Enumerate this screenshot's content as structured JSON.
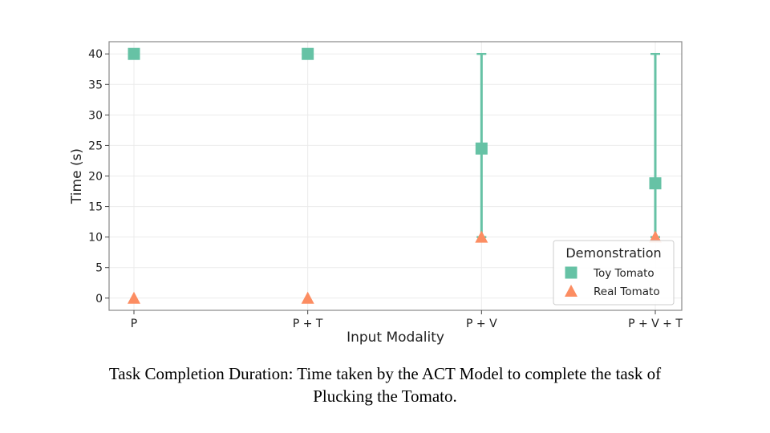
{
  "chart_data": {
    "type": "scatter",
    "categories": [
      "P",
      "P + T",
      "P + V",
      "P + V + T"
    ],
    "xlabel": "Input Modality",
    "ylabel": "Time (s)",
    "ylim": [
      -2,
      42
    ],
    "yticks": [
      0,
      5,
      10,
      15,
      20,
      25,
      30,
      35,
      40
    ],
    "grid": true,
    "legend": {
      "title": "Demonstration",
      "placement": "lower-right"
    },
    "series": [
      {
        "name": "Toy Tomato",
        "marker": "square",
        "color": "#66c2a5",
        "values": [
          40,
          40,
          24.5,
          18.8
        ],
        "error_low": [
          40,
          40,
          10,
          10
        ],
        "error_high": [
          40,
          40,
          40,
          40
        ]
      },
      {
        "name": "Real Tomato",
        "marker": "triangle",
        "color": "#fc8d62",
        "values": [
          0,
          0,
          10,
          10
        ]
      }
    ]
  },
  "caption": {
    "line1": "Task Completion Duration: Time taken by the ACT Model to complete the task of",
    "line2": "Plucking the Tomato."
  }
}
